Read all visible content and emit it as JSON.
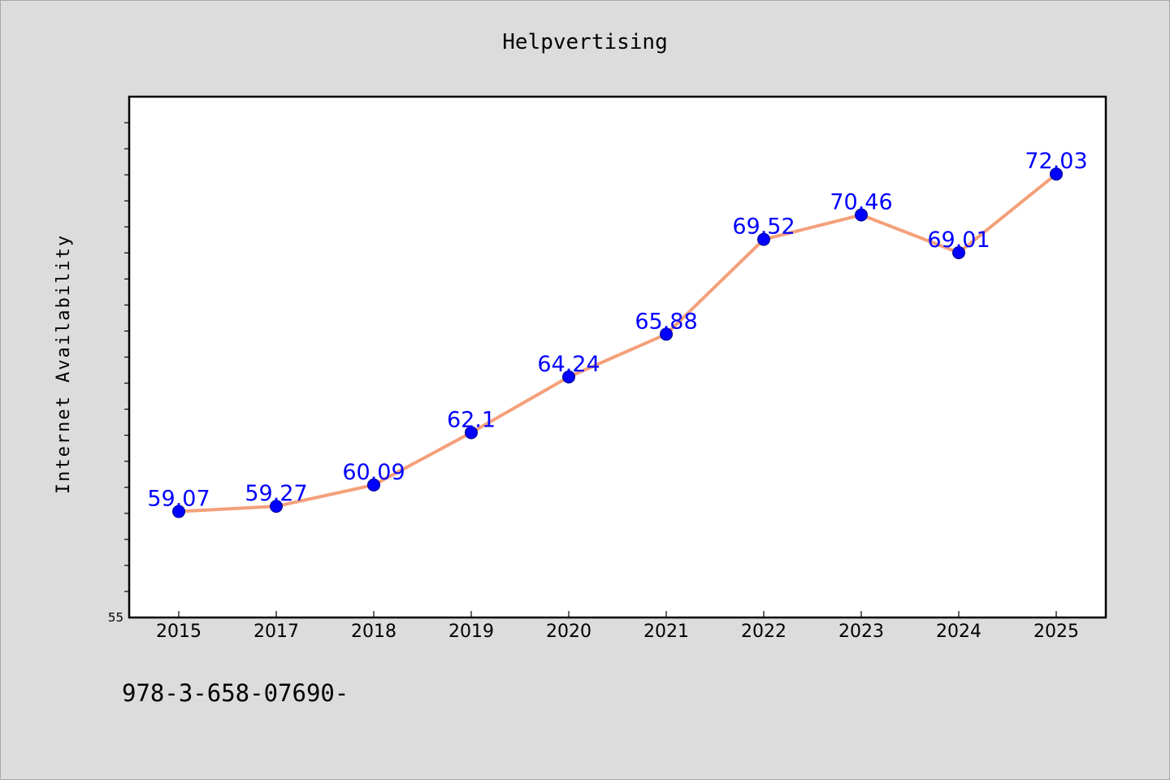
{
  "chart_data": {
    "type": "line",
    "title": "Helpvertising",
    "xlabel": "",
    "ylabel": "Internet Availability",
    "categories": [
      "2015",
      "2017",
      "2018",
      "2019",
      "2020",
      "2021",
      "2022",
      "2023",
      "2024",
      "2025"
    ],
    "series": [
      {
        "values": [
          59.07,
          59.27,
          60.09,
          62.1,
          64.24,
          65.88,
          69.52,
          70.46,
          69.01,
          72.03
        ]
      }
    ],
    "ylim": [
      55,
      75
    ],
    "y_tick_labels": [
      "55"
    ],
    "grid": false,
    "legend": "none",
    "colors": {
      "line": "#f4a07a",
      "marker": "#0000ff",
      "label": "#0000ff",
      "plot_bg": "#ffffff",
      "page_bg": "#dcdcdc"
    }
  },
  "footer_text": "978-3-658-07690-"
}
